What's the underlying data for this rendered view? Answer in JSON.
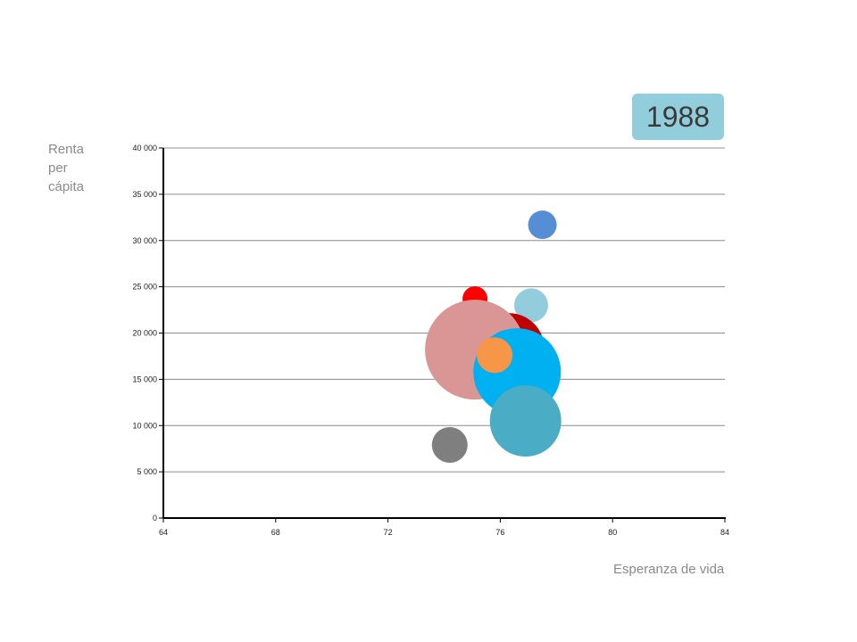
{
  "chart_data": {
    "type": "scatter",
    "subtype": "bubble",
    "title": "1988",
    "xlabel": "Esperanza de vida",
    "ylabel": "Renta per cápita",
    "xlim": [
      64,
      84
    ],
    "ylim": [
      0,
      40000
    ],
    "xticks": [
      "64",
      "68",
      "72",
      "76",
      "80",
      "84"
    ],
    "yticks": [
      "0",
      "5 000",
      "10 000",
      "15 000",
      "20 000",
      "25 000",
      "30 000",
      "35 000",
      "40 000"
    ],
    "grid": true,
    "colors": {
      "gridline": "#8c8c8c",
      "axis": "#000000",
      "badge": "#92cddc"
    },
    "points": [
      {
        "x": 77.5,
        "y": 31700,
        "size": 16,
        "color": "#558ed5"
      },
      {
        "x": 75.1,
        "y": 23700,
        "size": 14,
        "color": "#ff0000"
      },
      {
        "x": 77.1,
        "y": 23000,
        "size": 19,
        "color": "#93cddd"
      },
      {
        "x": 76.3,
        "y": 18300,
        "size": 40,
        "color": "#c00000"
      },
      {
        "x": 75.1,
        "y": 18200,
        "size": 56,
        "color": "#d99694"
      },
      {
        "x": 76.6,
        "y": 15800,
        "size": 49,
        "color": "#00b0f0"
      },
      {
        "x": 75.8,
        "y": 17600,
        "size": 20,
        "color": "#f79646"
      },
      {
        "x": 76.9,
        "y": 10500,
        "size": 40,
        "color": "#4bacc6"
      },
      {
        "x": 74.2,
        "y": 7900,
        "size": 20,
        "color": "#7f7f7f"
      }
    ]
  }
}
